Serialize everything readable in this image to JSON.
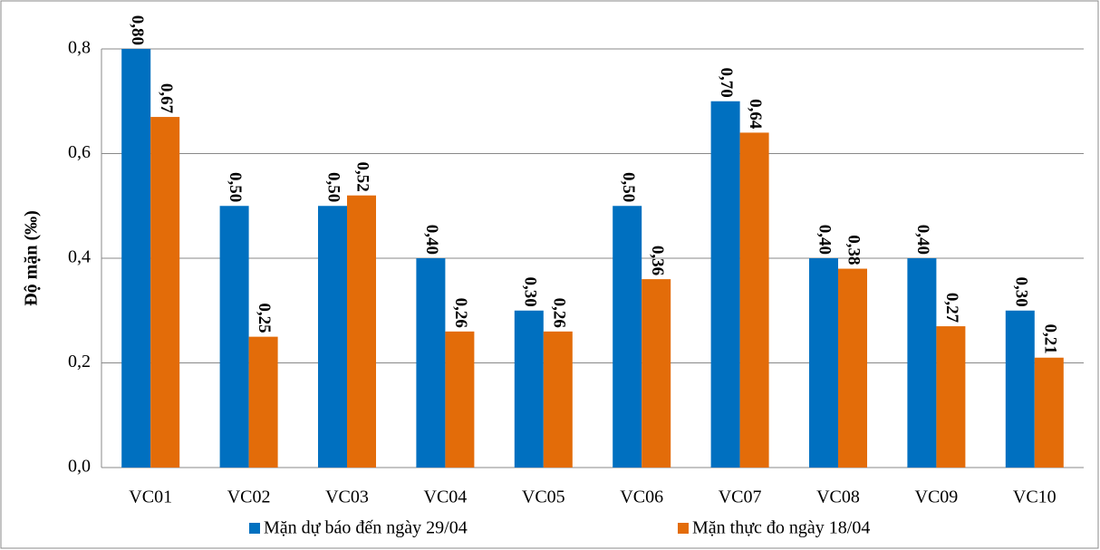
{
  "chart_data": {
    "type": "bar",
    "y_label": "Độ mặn (‰)",
    "categories": [
      "VC01",
      "VC02",
      "VC03",
      "VC04",
      "VC05",
      "VC06",
      "VC07",
      "VC08",
      "VC09",
      "VC10"
    ],
    "series": [
      {
        "name": "Mặn dự báo đến ngày 29/04",
        "color": "#0070c0",
        "values": [
          0.8,
          0.5,
          0.5,
          0.4,
          0.3,
          0.5,
          0.7,
          0.4,
          0.4,
          0.3
        ],
        "value_labels": [
          "0,80",
          "0,50",
          "0,50",
          "0,40",
          "0,30",
          "0,50",
          "0,70",
          "0,40",
          "0,40",
          "0,30"
        ]
      },
      {
        "name": "Mặn thực đo ngày 18/04",
        "color": "#e36c09",
        "values": [
          0.67,
          0.25,
          0.52,
          0.26,
          0.26,
          0.36,
          0.64,
          0.38,
          0.27,
          0.21
        ],
        "value_labels": [
          "0,67",
          "0,25",
          "0,52",
          "0,26",
          "0,26",
          "0,36",
          "0,64",
          "0,38",
          "0,27",
          "0,21"
        ]
      }
    ],
    "ylim": [
      0,
      0.8
    ],
    "yticks": [
      {
        "value": 0,
        "label": "0,0"
      },
      {
        "value": 0.2,
        "label": "0,2"
      },
      {
        "value": 0.4,
        "label": "0,4"
      },
      {
        "value": 0.6,
        "label": "0,6"
      },
      {
        "value": 0.8,
        "label": "0,8"
      }
    ],
    "grid": true,
    "legend": "bottom"
  }
}
